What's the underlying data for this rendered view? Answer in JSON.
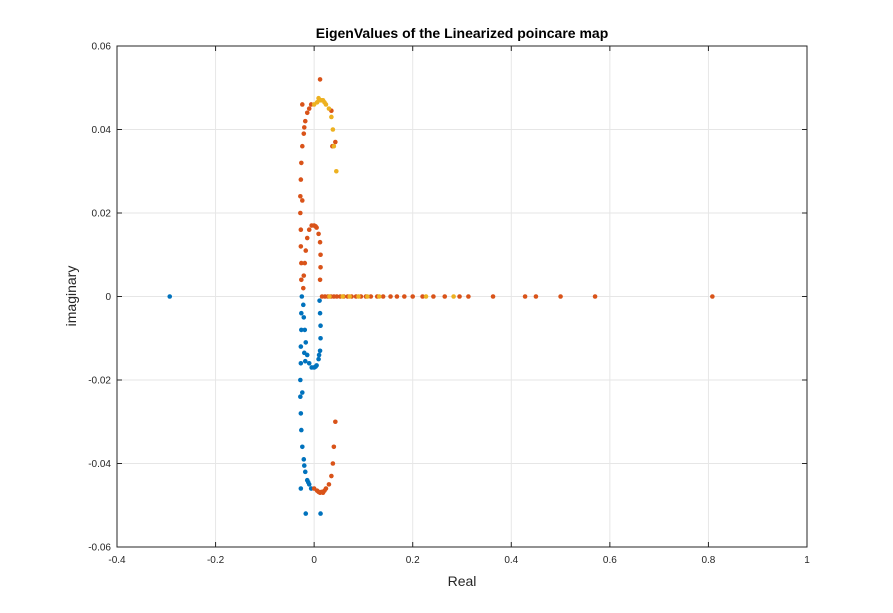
{
  "chart_data": {
    "type": "scatter",
    "title": "EigenValues of the Linearized poincare map",
    "xlabel": "Real",
    "ylabel": "imaginary",
    "xlim": [
      -0.4,
      1
    ],
    "ylim": [
      -0.06,
      0.06
    ],
    "x_ticks": [
      "-0.4",
      "-0.2",
      "0",
      "0.2",
      "0.4",
      "0.6",
      "0.8",
      "1"
    ],
    "y_ticks": [
      "0.06",
      "0.04",
      "0.02",
      "0",
      "-0.02",
      "-0.04",
      "-0.06"
    ],
    "x_tick_values": [
      -0.4,
      -0.2,
      0,
      0.2,
      0.4,
      0.6,
      0.8,
      1
    ],
    "y_tick_values": [
      0.06,
      0.04,
      0.02,
      0,
      -0.02,
      -0.04,
      -0.06
    ],
    "grid": true,
    "colors": {
      "series1": "#0072BD",
      "series2": "#D95319",
      "series3": "#EDB120",
      "grid": "#e6e6e6",
      "axis": "#262626"
    },
    "series": [
      {
        "color": "#0072BD",
        "points": [
          [
            -0.293,
            0.0
          ],
          [
            -0.027,
            -0.046
          ],
          [
            -0.017,
            -0.052
          ],
          [
            0.013,
            -0.052
          ],
          [
            -0.025,
            0.0
          ],
          [
            -0.026,
            -0.004
          ],
          [
            -0.026,
            -0.008
          ],
          [
            -0.027,
            -0.012
          ],
          [
            -0.027,
            -0.016
          ],
          [
            -0.028,
            -0.02
          ],
          [
            -0.028,
            -0.024
          ],
          [
            -0.027,
            -0.028
          ],
          [
            -0.026,
            -0.032
          ],
          [
            -0.024,
            -0.036
          ],
          [
            -0.021,
            -0.039
          ],
          [
            -0.018,
            -0.042
          ],
          [
            -0.014,
            -0.044
          ],
          [
            -0.01,
            -0.045
          ],
          [
            -0.006,
            -0.046
          ],
          [
            -0.022,
            -0.002
          ],
          [
            -0.021,
            -0.005
          ],
          [
            -0.019,
            -0.008
          ],
          [
            -0.017,
            -0.011
          ],
          [
            -0.014,
            -0.014
          ],
          [
            -0.01,
            -0.016
          ],
          [
            -0.005,
            -0.017
          ],
          [
            0.0,
            -0.017
          ],
          [
            0.005,
            -0.0165
          ],
          [
            0.009,
            -0.015
          ],
          [
            0.012,
            -0.013
          ],
          [
            0.013,
            -0.01
          ],
          [
            0.013,
            -0.007
          ],
          [
            0.012,
            -0.004
          ],
          [
            0.011,
            -0.001
          ],
          [
            -0.02,
            -0.0135
          ],
          [
            -0.018,
            -0.0155
          ],
          [
            0.003,
            -0.0168
          ],
          [
            0.01,
            -0.014
          ],
          [
            -0.024,
            -0.023
          ],
          [
            -0.02,
            -0.0405
          ],
          [
            -0.012,
            -0.0445
          ]
        ]
      },
      {
        "color": "#D95319",
        "points": [
          [
            0.808,
            0.0
          ],
          [
            0.57,
            0.0
          ],
          [
            0.5,
            0.0
          ],
          [
            0.45,
            0.0
          ],
          [
            0.428,
            0.0
          ],
          [
            0.363,
            0.0
          ],
          [
            0.313,
            0.0
          ],
          [
            0.295,
            0.0
          ],
          [
            0.265,
            0.0
          ],
          [
            0.242,
            0.0
          ],
          [
            0.22,
            0.0
          ],
          [
            0.2,
            0.0
          ],
          [
            0.183,
            0.0
          ],
          [
            0.168,
            0.0
          ],
          [
            0.155,
            0.0
          ],
          [
            0.14,
            0.0
          ],
          [
            0.128,
            0.0
          ],
          [
            0.115,
            0.0
          ],
          [
            0.105,
            0.0
          ],
          [
            0.095,
            0.0
          ],
          [
            0.085,
            0.0
          ],
          [
            0.076,
            0.0
          ],
          [
            0.068,
            0.0
          ],
          [
            0.06,
            0.0
          ],
          [
            0.053,
            0.0
          ],
          [
            0.046,
            0.0
          ],
          [
            0.04,
            0.0
          ],
          [
            0.034,
            0.0
          ],
          [
            0.028,
            0.0
          ],
          [
            0.022,
            0.0
          ],
          [
            0.016,
            0.0
          ],
          [
            -0.024,
            0.046
          ],
          [
            0.012,
            0.052
          ],
          [
            0.035,
            0.0445
          ],
          [
            0.043,
            0.037
          ],
          [
            0.037,
            0.036
          ],
          [
            -0.026,
            0.004
          ],
          [
            -0.026,
            0.008
          ],
          [
            -0.027,
            0.012
          ],
          [
            -0.027,
            0.016
          ],
          [
            -0.028,
            0.02
          ],
          [
            -0.028,
            0.024
          ],
          [
            -0.027,
            0.028
          ],
          [
            -0.026,
            0.032
          ],
          [
            -0.024,
            0.036
          ],
          [
            -0.021,
            0.039
          ],
          [
            -0.018,
            0.042
          ],
          [
            -0.014,
            0.044
          ],
          [
            -0.01,
            0.045
          ],
          [
            -0.006,
            0.046
          ],
          [
            -0.022,
            0.002
          ],
          [
            -0.021,
            0.005
          ],
          [
            -0.019,
            0.008
          ],
          [
            -0.017,
            0.011
          ],
          [
            -0.014,
            0.014
          ],
          [
            -0.01,
            0.016
          ],
          [
            -0.005,
            0.017
          ],
          [
            0.0,
            0.017
          ],
          [
            0.005,
            0.0165
          ],
          [
            0.009,
            0.015
          ],
          [
            0.012,
            0.013
          ],
          [
            0.013,
            0.01
          ],
          [
            0.013,
            0.007
          ],
          [
            0.012,
            0.004
          ],
          [
            -0.024,
            0.023
          ],
          [
            -0.02,
            0.0405
          ],
          [
            0.003,
            0.0168
          ],
          [
            0.043,
            -0.03
          ],
          [
            0.04,
            -0.036
          ],
          [
            0.038,
            -0.04
          ],
          [
            0.035,
            -0.043
          ],
          [
            0.03,
            -0.045
          ],
          [
            0.024,
            -0.046
          ],
          [
            0.018,
            -0.047
          ],
          [
            0.012,
            -0.047
          ],
          [
            0.006,
            -0.0465
          ],
          [
            0.0,
            -0.046
          ],
          [
            0.009,
            -0.0468
          ],
          [
            0.015,
            -0.0468
          ],
          [
            0.021,
            -0.0465
          ]
        ]
      },
      {
        "color": "#EDB120",
        "points": [
          [
            0.045,
            0.03
          ],
          [
            0.04,
            0.036
          ],
          [
            0.038,
            0.04
          ],
          [
            0.035,
            0.043
          ],
          [
            0.03,
            0.045
          ],
          [
            0.024,
            0.046
          ],
          [
            0.018,
            0.047
          ],
          [
            0.012,
            0.047
          ],
          [
            0.006,
            0.0465
          ],
          [
            0.0,
            0.046
          ],
          [
            0.009,
            0.0475
          ],
          [
            0.015,
            0.047
          ],
          [
            0.021,
            0.0465
          ],
          [
            0.283,
            0.0
          ],
          [
            0.227,
            0.0
          ],
          [
            0.132,
            0.0
          ],
          [
            0.108,
            0.0
          ],
          [
            0.09,
            0.0
          ],
          [
            0.072,
            0.0
          ],
          [
            0.058,
            0.0
          ],
          [
            0.031,
            0.0
          ]
        ]
      }
    ]
  }
}
